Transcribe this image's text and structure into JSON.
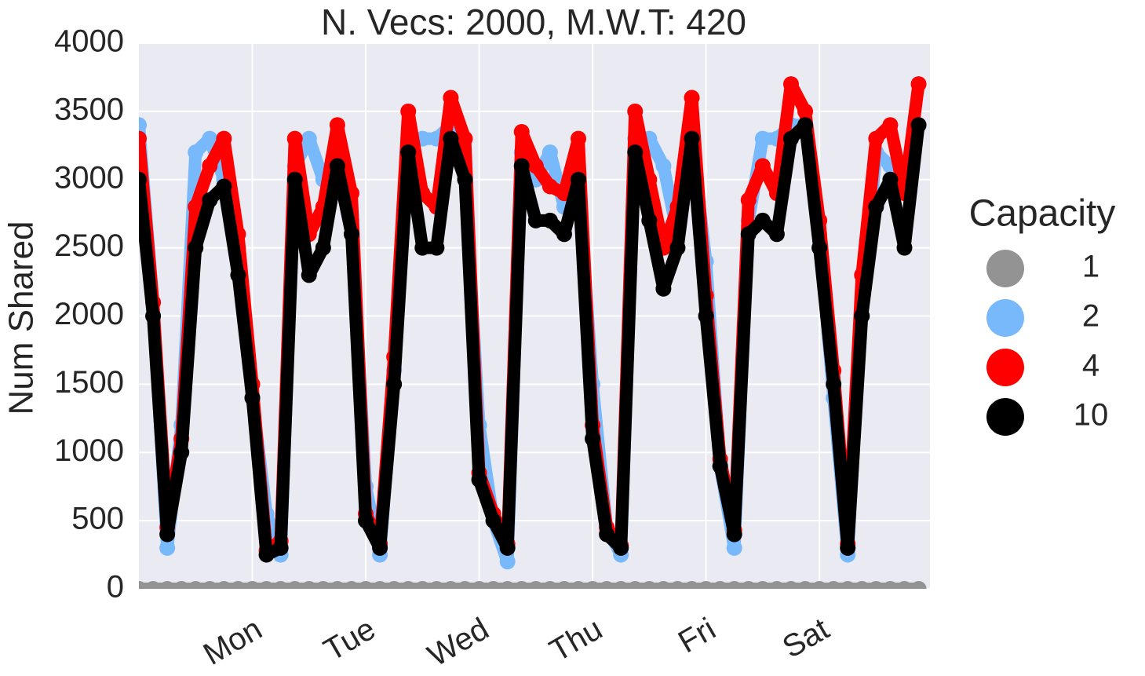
{
  "chart_data": {
    "type": "scatter",
    "title": "N. Vecs: 2000, M.W.T: 420",
    "y_label": "Num Shared",
    "legend_title": "Capacity",
    "legend": "right",
    "grid": true,
    "categories": [
      null,
      null,
      null,
      null,
      null,
      null,
      null,
      null,
      "Mon",
      null,
      null,
      null,
      null,
      null,
      null,
      null,
      "Tue",
      null,
      null,
      null,
      null,
      null,
      null,
      null,
      "Wed",
      null,
      null,
      null,
      null,
      null,
      null,
      null,
      "Thu",
      null,
      null,
      null,
      null,
      null,
      null,
      null,
      "Fri",
      null,
      null,
      null,
      null,
      null,
      null,
      null,
      "Sat",
      null,
      null,
      null,
      null,
      null,
      null,
      null
    ],
    "ylim": [
      0,
      4000
    ],
    "yticks": [
      0,
      500,
      1000,
      1500,
      2000,
      2500,
      3000,
      3500,
      4000
    ],
    "series": [
      {
        "name": "1",
        "color": "#939393",
        "values": [
          0,
          0,
          0,
          0,
          0,
          0,
          0,
          0,
          0,
          0,
          0,
          0,
          0,
          0,
          0,
          0,
          0,
          0,
          0,
          0,
          0,
          0,
          0,
          0,
          0,
          0,
          0,
          0,
          0,
          0,
          0,
          0,
          0,
          0,
          0,
          0,
          0,
          0,
          0,
          0,
          0,
          0,
          0,
          0,
          0,
          0,
          0,
          0,
          0,
          0,
          0,
          0,
          0,
          0,
          0,
          0
        ]
      },
      {
        "name": "2",
        "color": "#78b9fb",
        "values": [
          3400,
          2100,
          300,
          1200,
          3200,
          3300,
          3000,
          2500,
          1400,
          550,
          250,
          3100,
          3300,
          3000,
          3200,
          2700,
          750,
          250,
          1600,
          3300,
          3300,
          3300,
          3400,
          3000,
          1200,
          500,
          200,
          3200,
          3000,
          3200,
          2800,
          3000,
          1500,
          450,
          250,
          3300,
          3300,
          3100,
          2600,
          3300,
          2400,
          900,
          300,
          2700,
          3300,
          3300,
          3400,
          3400,
          2600,
          1400,
          250,
          2100,
          3200,
          3100,
          3000,
          3400
        ]
      },
      {
        "name": "4",
        "color": "#ff0000",
        "values": [
          3300,
          2100,
          450,
          1100,
          2800,
          3100,
          3300,
          2600,
          1500,
          280,
          350,
          3300,
          2600,
          2800,
          3400,
          2900,
          550,
          330,
          1700,
          3500,
          2900,
          2800,
          3600,
          3300,
          850,
          550,
          330,
          3350,
          3100,
          2950,
          2900,
          3300,
          1200,
          450,
          320,
          3500,
          3000,
          2500,
          2800,
          3600,
          2150,
          950,
          430,
          2850,
          3100,
          2900,
          3700,
          3500,
          2700,
          1600,
          330,
          2300,
          3300,
          3400,
          2900,
          3700
        ]
      },
      {
        "name": "10",
        "color": "#000000",
        "values": [
          3000,
          2000,
          400,
          1000,
          2500,
          2850,
          2950,
          2300,
          1400,
          250,
          300,
          3000,
          2300,
          2500,
          3100,
          2600,
          500,
          300,
          1500,
          3200,
          2500,
          2500,
          3300,
          3000,
          800,
          500,
          300,
          3100,
          2700,
          2700,
          2600,
          3000,
          1100,
          400,
          300,
          3200,
          2700,
          2200,
          2500,
          3300,
          2000,
          900,
          400,
          2600,
          2700,
          2600,
          3300,
          3400,
          2500,
          1500,
          300,
          2000,
          2800,
          3000,
          2500,
          3400
        ]
      }
    ]
  }
}
